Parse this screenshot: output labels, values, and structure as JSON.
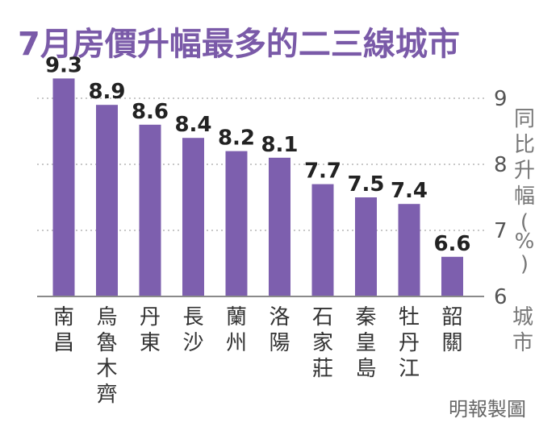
{
  "colors": {
    "bar": "#7d5fae",
    "title": "#7a5aa8",
    "grid": "#c8c8c8",
    "axis": "#8a8a8a"
  },
  "source": "明報製圖",
  "chart_data": {
    "type": "bar",
    "title": "7月房價升幅最多的二三線城市",
    "ylabel": "同比升幅(%)",
    "xlabel": "城市",
    "ylim": [
      6,
      9
    ],
    "yticks": [
      "6",
      "7",
      "8",
      "9"
    ],
    "grid": true,
    "categories": [
      "南昌",
      "烏魯木齊",
      "丹東",
      "長沙",
      "蘭州",
      "洛陽",
      "石家莊",
      "秦皇島",
      "牡丹江",
      "韶關"
    ],
    "values": [
      9.3,
      8.9,
      8.6,
      8.4,
      8.2,
      8.1,
      7.7,
      7.5,
      7.4,
      6.6
    ],
    "value_labels": [
      "9.3",
      "8.9",
      "8.6",
      "8.4",
      "8.2",
      "8.1",
      "7.7",
      "7.5",
      "7.4",
      "6.6"
    ]
  }
}
